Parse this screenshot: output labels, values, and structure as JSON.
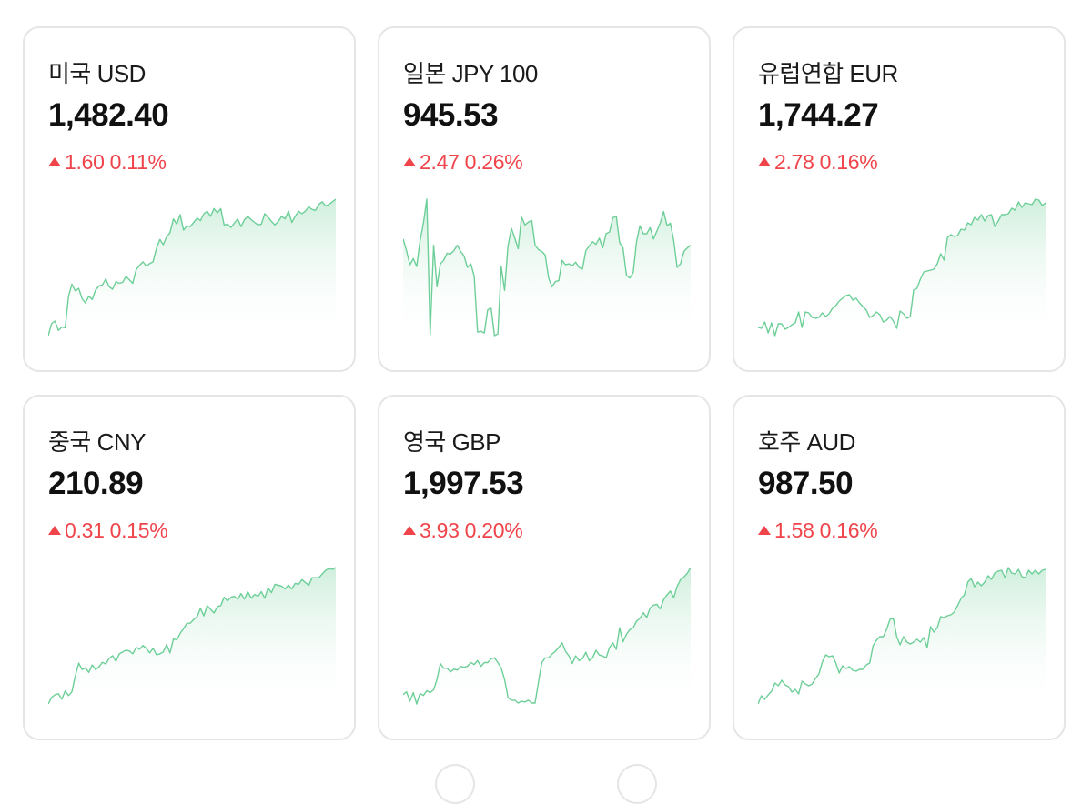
{
  "colors": {
    "up": "#f0444b",
    "line": "#6dcf98",
    "fill_top": "#cdeedb"
  },
  "cards": [
    {
      "name": "미국 USD",
      "rate": "1,482.40",
      "change": "1.60 0.11%",
      "direction_icon": "triangle-up-icon",
      "series": [
        2,
        16,
        19,
        8,
        12,
        11,
        48,
        62,
        54,
        57,
        45,
        40,
        48,
        44,
        55,
        60,
        61,
        68,
        59,
        56,
        65,
        63,
        64,
        71,
        67,
        63,
        79,
        84,
        88,
        83,
        86,
        88,
        104,
        114,
        108,
        117,
        122,
        138,
        132,
        143,
        125,
        130,
        129,
        134,
        139,
        136,
        144,
        147,
        141,
        150,
        145,
        150,
        131,
        132,
        128,
        133,
        138,
        129,
        137,
        141,
        137,
        134,
        131,
        132,
        144,
        140,
        135,
        131,
        135,
        141,
        138,
        147,
        134,
        141,
        147,
        144,
        147,
        152,
        149,
        148,
        155,
        158,
        153,
        155,
        158,
        161
      ]
    },
    {
      "name": "일본 JPY 100",
      "rate": "945.53",
      "change": "2.47 0.26%",
      "direction_icon": "triangle-up-icon",
      "series": [
        110,
        97,
        81,
        88,
        79,
        108,
        128,
        155,
        2,
        103,
        56,
        82,
        86,
        94,
        93,
        97,
        103,
        96,
        91,
        78,
        82,
        68,
        5,
        6,
        4,
        30,
        32,
        1,
        3,
        79,
        52,
        102,
        122,
        111,
        99,
        135,
        126,
        129,
        131,
        103,
        98,
        96,
        92,
        66,
        56,
        62,
        63,
        86,
        81,
        82,
        80,
        84,
        78,
        76,
        97,
        102,
        107,
        104,
        111,
        100,
        116,
        118,
        134,
        136,
        106,
        100,
        69,
        66,
        72,
        107,
        125,
        116,
        116,
        123,
        110,
        119,
        128,
        141,
        125,
        128,
        108,
        78,
        82,
        96,
        100,
        103
      ]
    },
    {
      "name": "유럽연합 EUR",
      "rate": "1,744.27",
      "change": "2.78 0.16%",
      "direction_icon": "triangle-up-icon",
      "series": [
        12,
        11,
        18,
        6,
        17,
        3,
        16,
        16,
        10,
        12,
        15,
        17,
        29,
        12,
        29,
        28,
        23,
        22,
        23,
        28,
        24,
        27,
        33,
        36,
        41,
        44,
        47,
        48,
        42,
        44,
        39,
        35,
        31,
        23,
        25,
        29,
        26,
        18,
        20,
        24,
        19,
        11,
        30,
        27,
        22,
        24,
        53,
        55,
        65,
        73,
        74,
        75,
        76,
        82,
        93,
        86,
        111,
        114,
        112,
        113,
        120,
        119,
        127,
        125,
        133,
        130,
        136,
        129,
        135,
        136,
        123,
        129,
        136,
        136,
        137,
        143,
        141,
        150,
        144,
        149,
        148,
        147,
        153,
        152,
        146,
        149
      ]
    },
    {
      "name": "중국 CNY",
      "rate": "210.89",
      "change": "0.31 0.15%",
      "direction_icon": "triangle-up-icon",
      "series": [
        2,
        9,
        12,
        13,
        7,
        16,
        11,
        15,
        32,
        46,
        39,
        41,
        36,
        44,
        39,
        42,
        47,
        45,
        51,
        54,
        48,
        56,
        58,
        60,
        59,
        56,
        63,
        61,
        65,
        62,
        57,
        62,
        55,
        56,
        58,
        66,
        57,
        72,
        71,
        78,
        83,
        89,
        89,
        93,
        96,
        105,
        97,
        108,
        104,
        100,
        107,
        108,
        117,
        113,
        117,
        118,
        115,
        121,
        115,
        123,
        116,
        120,
        118,
        123,
        116,
        127,
        122,
        131,
        130,
        129,
        126,
        130,
        126,
        132,
        131,
        136,
        133,
        130,
        138,
        138,
        138,
        142,
        146,
        148,
        147,
        149
      ]
    },
    {
      "name": "영국 GBP",
      "rate": "1,997.53",
      "change": "3.93 0.20%",
      "direction_icon": "triangle-up-icon",
      "series": [
        12,
        15,
        5,
        14,
        2,
        13,
        11,
        16,
        14,
        17,
        28,
        45,
        40,
        40,
        36,
        39,
        38,
        42,
        41,
        42,
        46,
        44,
        48,
        42,
        46,
        46,
        50,
        51,
        46,
        40,
        28,
        9,
        6,
        6,
        3,
        5,
        4,
        6,
        3,
        3,
        25,
        46,
        51,
        51,
        55,
        58,
        62,
        67,
        58,
        53,
        45,
        53,
        48,
        50,
        57,
        48,
        51,
        59,
        54,
        53,
        51,
        62,
        67,
        60,
        83,
        68,
        76,
        81,
        83,
        90,
        93,
        99,
        94,
        104,
        107,
        108,
        103,
        113,
        118,
        122,
        115,
        127,
        134,
        137,
        141,
        147
      ]
    },
    {
      "name": "호주 AUD",
      "rate": "987.50",
      "change": "1.58 0.16%",
      "direction_icon": "triangle-up-icon",
      "series": [
        2,
        11,
        7,
        12,
        16,
        25,
        22,
        28,
        23,
        21,
        15,
        18,
        13,
        27,
        24,
        22,
        24,
        30,
        35,
        48,
        56,
        54,
        55,
        47,
        36,
        44,
        41,
        43,
        39,
        38,
        40,
        40,
        45,
        47,
        66,
        72,
        76,
        76,
        84,
        95,
        96,
        76,
        67,
        76,
        70,
        68,
        70,
        73,
        70,
        75,
        64,
        87,
        81,
        86,
        98,
        97,
        99,
        100,
        103,
        110,
        118,
        122,
        136,
        140,
        131,
        136,
        132,
        136,
        143,
        139,
        146,
        148,
        149,
        141,
        152,
        146,
        145,
        150,
        142,
        141,
        149,
        145,
        149,
        145,
        149,
        150
      ]
    }
  ]
}
